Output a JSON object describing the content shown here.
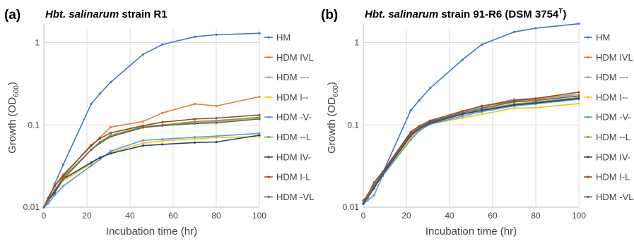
{
  "figure": {
    "letters": [
      "(a)",
      "(b)"
    ]
  },
  "chart_data": [
    {
      "type": "line",
      "panel_letter": "(a)",
      "title_parts": [
        {
          "text": "Hbt. salinarum",
          "italic": true
        },
        {
          "text": " strain R1",
          "italic": false
        }
      ],
      "xlabel": "Incubation time (hr)",
      "ylabel": "Growth (OD600)",
      "ylabel_main": "Growth (OD",
      "ylabel_sub": "600",
      "ylabel_end": ")",
      "y_scale": "log",
      "xlim": [
        0,
        100
      ],
      "ylim": [
        0.01,
        1.5
      ],
      "x_ticks": [
        0,
        20,
        40,
        60,
        80,
        100
      ],
      "x_tick_labels": [
        "0",
        "20",
        "40",
        "60",
        "80",
        "100"
      ],
      "y_ticks": [
        0.01,
        0.1,
        1
      ],
      "y_tick_labels": [
        "0.01",
        "0.1",
        "1"
      ],
      "grid": true,
      "legend_position": "right",
      "x": [
        0,
        2,
        5,
        9,
        22,
        26,
        31,
        46,
        55,
        70,
        80,
        100
      ],
      "series": [
        {
          "name": "HM",
          "color": "#4472c4",
          "values": [
            0.01,
            0.012,
            0.019,
            0.033,
            0.18,
            0.24,
            0.33,
            0.72,
            0.95,
            1.18,
            1.25,
            1.3
          ]
        },
        {
          "name": "HDM IVL",
          "color": "#ed7d31",
          "values": [
            0.01,
            0.013,
            0.018,
            0.025,
            0.055,
            0.07,
            0.094,
            0.11,
            0.14,
            0.18,
            0.17,
            0.22
          ]
        },
        {
          "name": "HDM ---",
          "color": "#a5a5a5",
          "values": [
            0.01,
            0.012,
            0.016,
            0.023,
            0.05,
            0.06,
            0.072,
            0.093,
            0.1,
            0.106,
            0.11,
            0.122
          ]
        },
        {
          "name": "HDM I--",
          "color": "#ffc000",
          "values": [
            0.01,
            0.012,
            0.016,
            0.021,
            0.034,
            0.04,
            0.046,
            0.06,
            0.064,
            0.068,
            0.07,
            0.072
          ]
        },
        {
          "name": "HDM -V-",
          "color": "#5b9bd5",
          "values": [
            0.01,
            0.011,
            0.014,
            0.018,
            0.032,
            0.038,
            0.048,
            0.065,
            0.067,
            0.071,
            0.073,
            0.079
          ]
        },
        {
          "name": "HDM --L",
          "color": "#70ad47",
          "values": [
            0.01,
            0.012,
            0.016,
            0.023,
            0.05,
            0.062,
            0.075,
            0.095,
            0.1,
            0.11,
            0.113,
            0.124
          ]
        },
        {
          "name": "HDM IV-",
          "color": "#264478",
          "values": [
            0.01,
            0.012,
            0.015,
            0.022,
            0.035,
            0.04,
            0.045,
            0.056,
            0.058,
            0.061,
            0.062,
            0.075
          ]
        },
        {
          "name": "HDM I-L",
          "color": "#9e480e",
          "values": [
            0.01,
            0.013,
            0.018,
            0.024,
            0.057,
            0.068,
            0.08,
            0.098,
            0.108,
            0.118,
            0.121,
            0.132
          ]
        },
        {
          "name": "HDM -VL",
          "color": "#636363",
          "values": [
            0.01,
            0.012,
            0.016,
            0.022,
            0.05,
            0.06,
            0.072,
            0.093,
            0.098,
            0.104,
            0.106,
            0.118
          ]
        }
      ]
    },
    {
      "type": "line",
      "panel_letter": "(b)",
      "title_parts": [
        {
          "text": "Hbt. salinarum",
          "italic": true
        },
        {
          "text": " strain 91-R6 (DSM 3754",
          "italic": false
        },
        {
          "text": "T",
          "italic": false,
          "superscript": true
        },
        {
          "text": ")",
          "italic": false
        }
      ],
      "xlabel": "Incubation time (hr)",
      "ylabel": "Growth (OD600)",
      "ylabel_main": "Growth (OD",
      "ylabel_sub": "600",
      "ylabel_end": ")",
      "y_scale": "log",
      "xlim": [
        0,
        100
      ],
      "ylim": [
        0.01,
        1.5
      ],
      "x_ticks": [
        0,
        20,
        40,
        60,
        80,
        100
      ],
      "x_tick_labels": [
        "0",
        "20",
        "40",
        "60",
        "80",
        "100"
      ],
      "y_ticks": [
        0.01,
        0.1,
        1
      ],
      "y_tick_labels": [
        "0.01",
        "0.1",
        "1"
      ],
      "grid": true,
      "legend_position": "right",
      "x": [
        0,
        2,
        5,
        9,
        22,
        26,
        31,
        46,
        55,
        70,
        80,
        100
      ],
      "series": [
        {
          "name": "HM",
          "color": "#4472c4",
          "values": [
            0.011,
            0.013,
            0.017,
            0.026,
            0.15,
            0.2,
            0.28,
            0.62,
            0.95,
            1.35,
            1.5,
            1.7
          ]
        },
        {
          "name": "HDM IVL",
          "color": "#ed7d31",
          "values": [
            0.012,
            0.013,
            0.019,
            0.026,
            0.08,
            0.095,
            0.112,
            0.145,
            0.168,
            0.195,
            0.205,
            0.235
          ]
        },
        {
          "name": "HDM ---",
          "color": "#a5a5a5",
          "values": [
            0.012,
            0.014,
            0.019,
            0.026,
            0.078,
            0.093,
            0.11,
            0.145,
            0.168,
            0.205,
            0.21,
            0.235
          ]
        },
        {
          "name": "HDM I--",
          "color": "#ffc000",
          "values": [
            0.011,
            0.013,
            0.017,
            0.025,
            0.07,
            0.088,
            0.102,
            0.122,
            0.135,
            0.16,
            0.162,
            0.182
          ]
        },
        {
          "name": "HDM -V-",
          "color": "#5b9bd5",
          "values": [
            0.011,
            0.012,
            0.014,
            0.024,
            0.066,
            0.085,
            0.102,
            0.128,
            0.145,
            0.17,
            0.18,
            0.205
          ]
        },
        {
          "name": "HDM --L",
          "color": "#70ad47",
          "values": [
            0.011,
            0.013,
            0.018,
            0.025,
            0.075,
            0.09,
            0.108,
            0.135,
            0.155,
            0.18,
            0.19,
            0.215
          ]
        },
        {
          "name": "HDM IV-",
          "color": "#264478",
          "values": [
            0.011,
            0.013,
            0.017,
            0.025,
            0.074,
            0.09,
            0.105,
            0.135,
            0.15,
            0.175,
            0.185,
            0.21
          ]
        },
        {
          "name": "HDM I-L",
          "color": "#9e480e",
          "values": [
            0.012,
            0.014,
            0.02,
            0.027,
            0.082,
            0.097,
            0.113,
            0.147,
            0.17,
            0.198,
            0.21,
            0.25
          ]
        },
        {
          "name": "HDM -VL",
          "color": "#636363",
          "values": [
            0.012,
            0.013,
            0.018,
            0.026,
            0.077,
            0.092,
            0.109,
            0.14,
            0.16,
            0.19,
            0.198,
            0.225
          ]
        }
      ]
    }
  ]
}
